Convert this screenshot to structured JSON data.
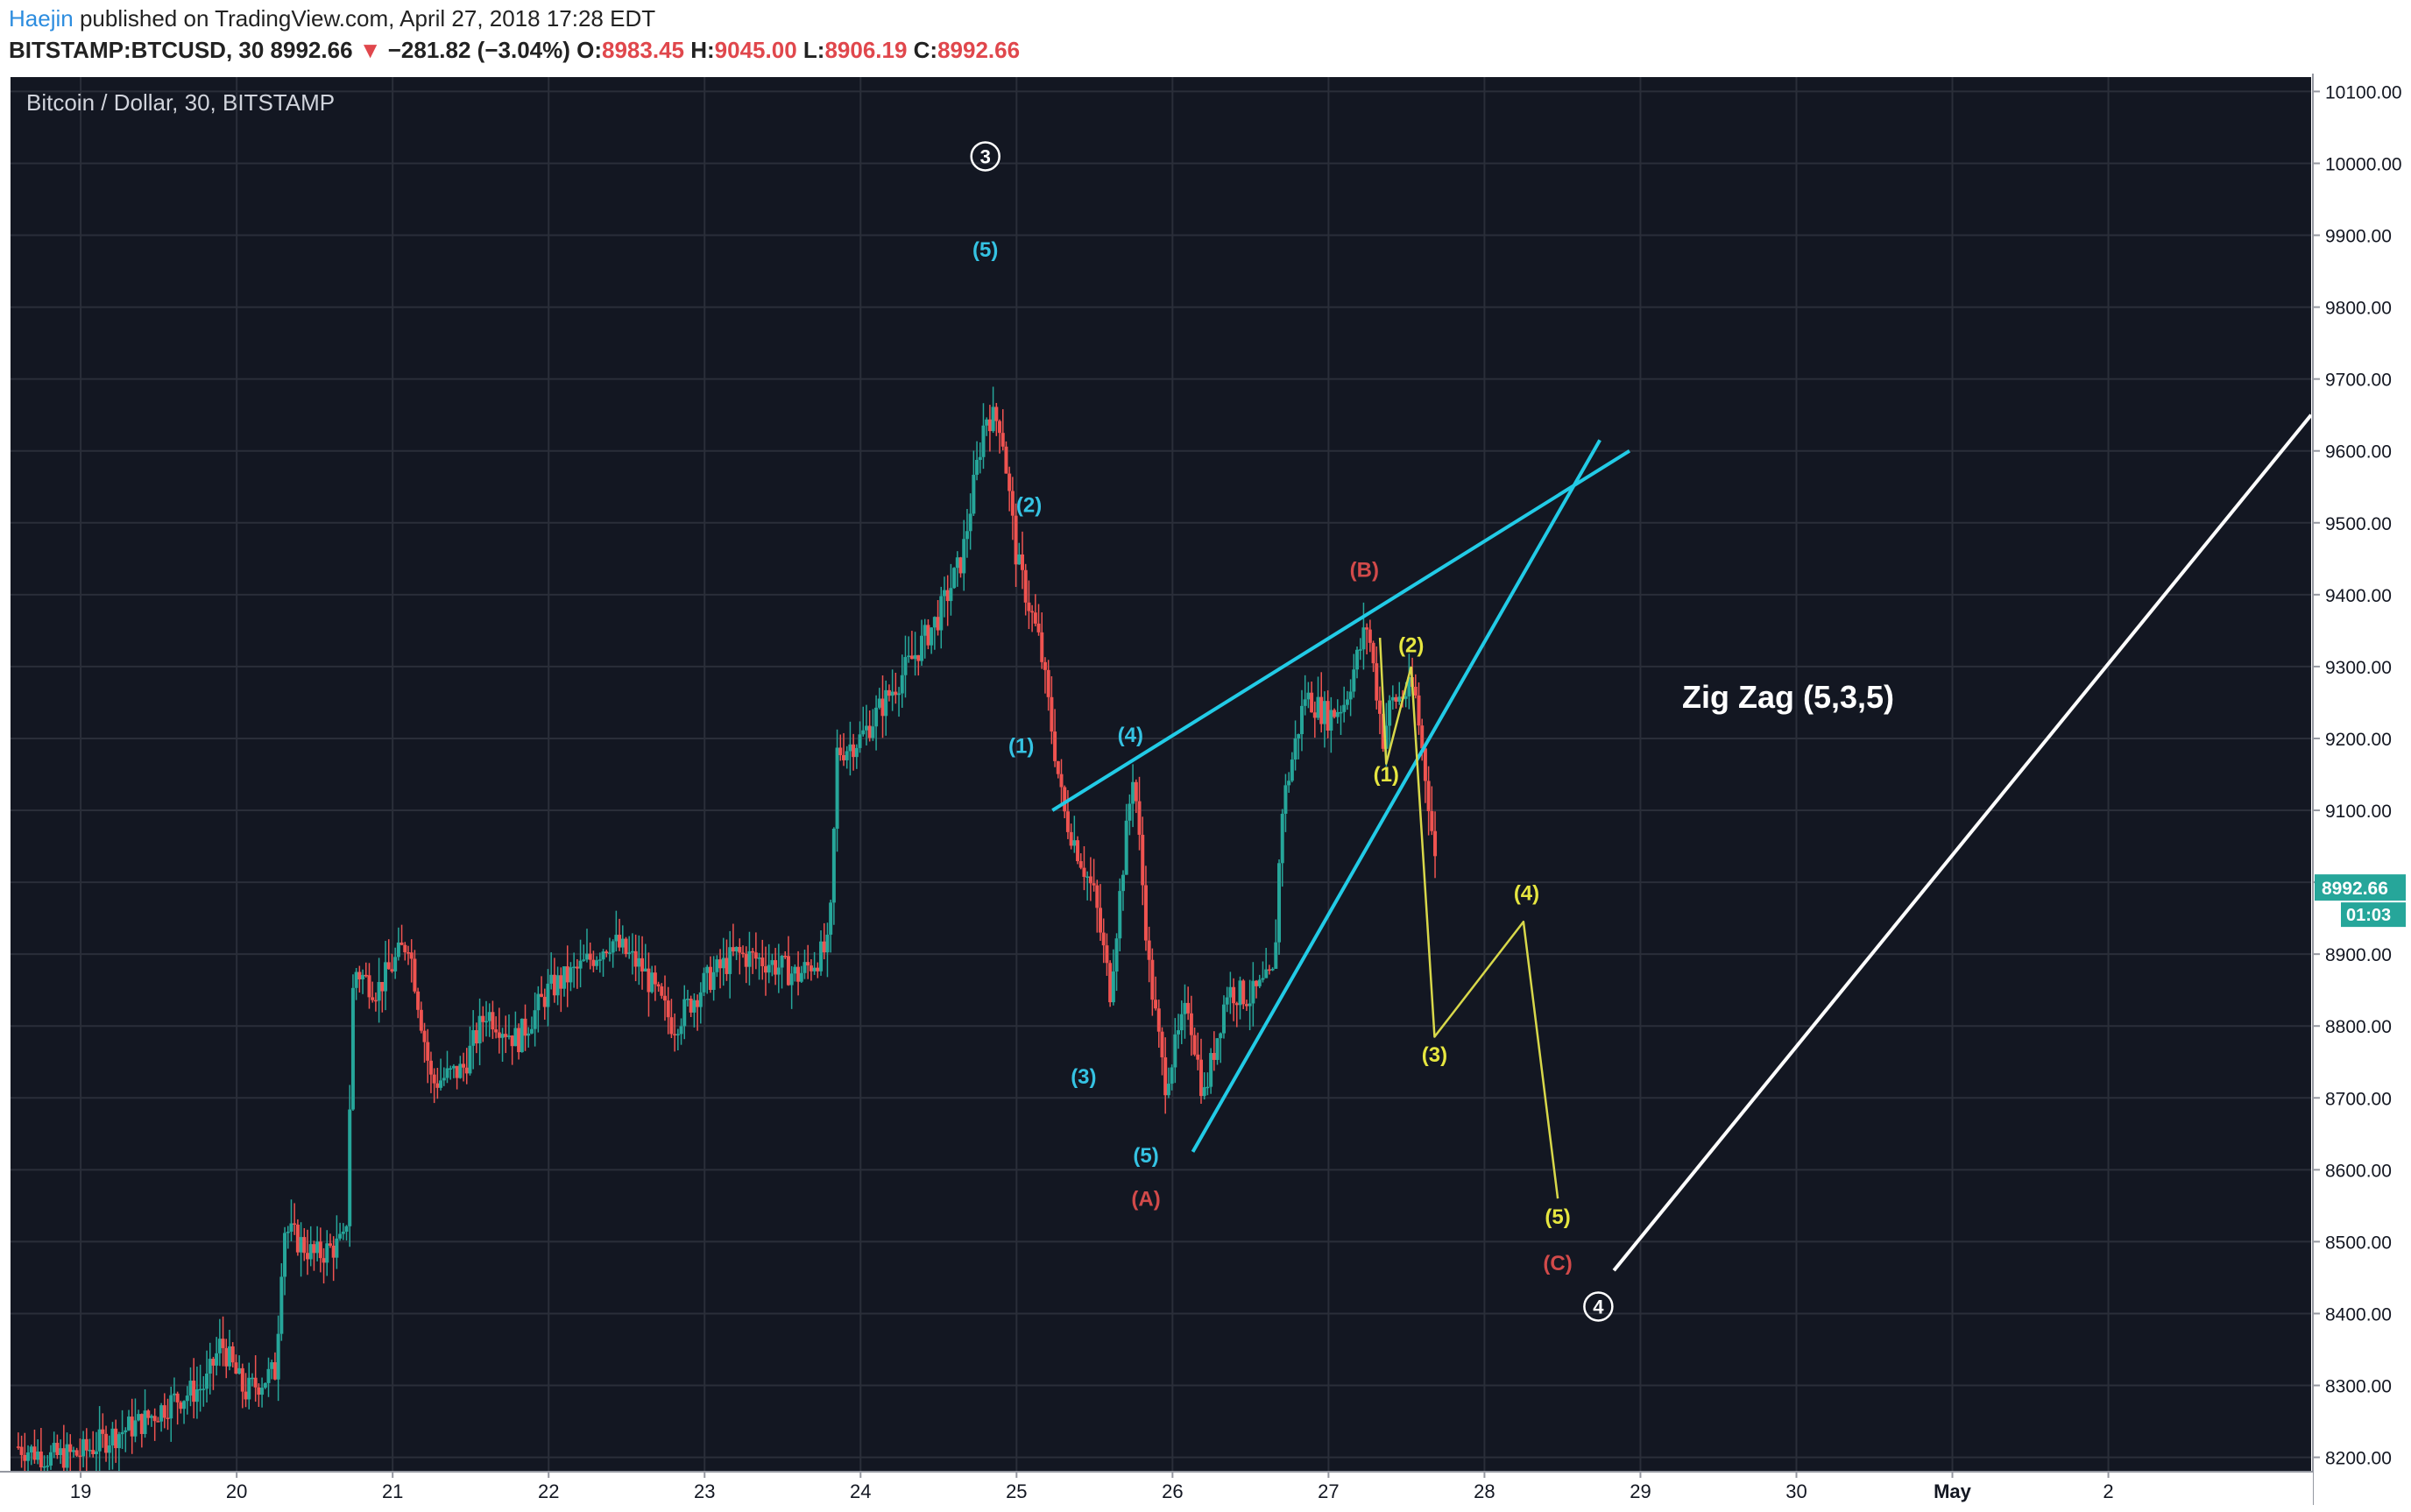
{
  "header": {
    "author": "Haejin",
    "published": "published on TradingView.com, April 27, 2018 17:28 EDT",
    "symbol": "BITSTAMP:BTCUSD, 30",
    "last": "8992.66",
    "change_arrow": "▼",
    "change": "−281.82 (−3.04%)",
    "o_label": "O:",
    "o_value": "8983.45",
    "h_label": "H:",
    "h_value": "9045.00",
    "l_label": "L:",
    "l_value": "8906.19",
    "c_label": "C:",
    "c_value": "8992.66"
  },
  "colors": {
    "background": "#131722",
    "up": "#26a69a",
    "down": "#ef5350",
    "trendline": "#22cbe6",
    "projection": "#d8d84a",
    "wave_labels_cyan": "#35c3e3",
    "wave_labels_red": "#d24a4a",
    "wave_labels_yellow": "#e6e640",
    "white_line": "#ffffff",
    "price_badge": "#26a69a"
  },
  "chart_data": {
    "type": "candlestick",
    "title": "Bitcoin / Dollar, 30, BITSTAMP",
    "price_axis": {
      "ticks": [
        8200,
        8300,
        8400,
        8500,
        8600,
        8700,
        8800,
        8900,
        9000,
        9100,
        9200,
        9300,
        9400,
        9500,
        9600,
        9700,
        9800,
        9900,
        10000,
        10100
      ],
      "tick_labels": [
        "8200.00",
        "8300.00",
        "8400.00",
        "8500.00",
        "8600.00",
        "8700.00",
        "8800.00",
        "8900.00",
        "9000.00",
        "9100.00",
        "9200.00",
        "9300.00",
        "9400.00",
        "9500.00",
        "9600.00",
        "9700.00",
        "9800.00",
        "9900.00",
        "10000.00",
        "10100.00"
      ],
      "ylim": [
        8180,
        10120
      ],
      "last_price_label": "8992.66",
      "countdown_label": "01:03",
      "last_price": 8992.66
    },
    "time_axis": {
      "labels": [
        "19",
        "20",
        "21",
        "22",
        "23",
        "24",
        "25",
        "26",
        "27",
        "28",
        "29",
        "30",
        "May",
        "2"
      ],
      "values": [
        19,
        20,
        21,
        22,
        23,
        24,
        25,
        26,
        27,
        28,
        29,
        30,
        31,
        32
      ],
      "xlim": [
        18.55,
        33.3
      ]
    },
    "grid": true,
    "price_path": [
      [
        18.6,
        8215
      ],
      [
        18.8,
        8200
      ],
      [
        19.0,
        8205
      ],
      [
        19.2,
        8230
      ],
      [
        19.4,
        8250
      ],
      [
        19.6,
        8280
      ],
      [
        19.8,
        8300
      ],
      [
        19.9,
        8360
      ],
      [
        20.05,
        8290
      ],
      [
        20.25,
        8320
      ],
      [
        20.3,
        8520
      ],
      [
        20.5,
        8480
      ],
      [
        20.7,
        8500
      ],
      [
        20.75,
        8880
      ],
      [
        20.9,
        8850
      ],
      [
        21.1,
        8920
      ],
      [
        21.25,
        8720
      ],
      [
        21.45,
        8740
      ],
      [
        21.6,
        8820
      ],
      [
        21.8,
        8780
      ],
      [
        22.0,
        8850
      ],
      [
        22.2,
        8880
      ],
      [
        22.4,
        8920
      ],
      [
        22.6,
        8880
      ],
      [
        22.8,
        8800
      ],
      [
        23.0,
        8860
      ],
      [
        23.2,
        8900
      ],
      [
        23.4,
        8890
      ],
      [
        23.6,
        8870
      ],
      [
        23.8,
        8910
      ],
      [
        23.85,
        9180
      ],
      [
        24.0,
        9200
      ],
      [
        24.3,
        9300
      ],
      [
        24.5,
        9370
      ],
      [
        24.65,
        9450
      ],
      [
        24.8,
        9650
      ],
      [
        24.9,
        9640
      ],
      [
        25.0,
        9450
      ],
      [
        25.15,
        9330
      ],
      [
        25.3,
        9100
      ],
      [
        25.5,
        8980
      ],
      [
        25.6,
        8850
      ],
      [
        25.7,
        9060
      ],
      [
        25.75,
        9160
      ],
      [
        25.85,
        8880
      ],
      [
        25.95,
        8720
      ],
      [
        26.1,
        8830
      ],
      [
        26.2,
        8700
      ],
      [
        26.35,
        8850
      ],
      [
        26.5,
        8840
      ],
      [
        26.65,
        8870
      ],
      [
        26.7,
        9100
      ],
      [
        26.85,
        9260
      ],
      [
        27.0,
        9230
      ],
      [
        27.1,
        9250
      ],
      [
        27.25,
        9360
      ],
      [
        27.35,
        9200
      ],
      [
        27.4,
        9250
      ],
      [
        27.55,
        9270
      ],
      [
        27.65,
        9100
      ],
      [
        27.7,
        8992.66
      ]
    ],
    "annotations": {
      "trendline_upper": [
        [
          25.23,
          9100
        ],
        [
          28.93,
          9600
        ]
      ],
      "trendline_lower": [
        [
          26.13,
          8625
        ],
        [
          28.74,
          9615
        ]
      ],
      "projection_small": [
        [
          27.33,
          9340
        ],
        [
          27.37,
          9165
        ],
        [
          27.53,
          9300
        ]
      ],
      "projection": [
        [
          27.53,
          9300
        ],
        [
          27.68,
          8785
        ],
        [
          28.25,
          8945
        ],
        [
          28.47,
          8560
        ]
      ],
      "white_line": [
        [
          28.83,
          8460
        ],
        [
          33.3,
          9650
        ]
      ],
      "labels": [
        {
          "text": "3",
          "x": 24.8,
          "price": 10000,
          "color": "white",
          "circled": true
        },
        {
          "text": "(5)",
          "x": 24.8,
          "price": 9870,
          "color": "cyan"
        },
        {
          "text": "(2)",
          "x": 25.08,
          "price": 9515,
          "color": "cyan"
        },
        {
          "text": "(1)",
          "x": 25.03,
          "price": 9180,
          "color": "cyan"
        },
        {
          "text": "(4)",
          "x": 25.73,
          "price": 9195,
          "color": "cyan"
        },
        {
          "text": "(3)",
          "x": 25.43,
          "price": 8720,
          "color": "cyan"
        },
        {
          "text": "(5)",
          "x": 25.83,
          "price": 8610,
          "color": "cyan"
        },
        {
          "text": "(A)",
          "x": 25.83,
          "price": 8550,
          "color": "red"
        },
        {
          "text": "(B)",
          "x": 27.23,
          "price": 9425,
          "color": "red"
        },
        {
          "text": "(2)",
          "x": 27.53,
          "price": 9320,
          "color": "yellow"
        },
        {
          "text": "(1)",
          "x": 27.37,
          "price": 9140,
          "color": "yellow"
        },
        {
          "text": "(4)",
          "x": 28.27,
          "price": 8975,
          "color": "yellow"
        },
        {
          "text": "(3)",
          "x": 27.68,
          "price": 8750,
          "color": "yellow"
        },
        {
          "text": "(5)",
          "x": 28.47,
          "price": 8525,
          "color": "yellow"
        },
        {
          "text": "(C)",
          "x": 28.47,
          "price": 8460,
          "color": "red"
        },
        {
          "text": "4",
          "x": 28.73,
          "price": 8400,
          "color": "white",
          "circled": true
        }
      ],
      "pattern_label": "Zig Zag (5,3,5)"
    }
  }
}
